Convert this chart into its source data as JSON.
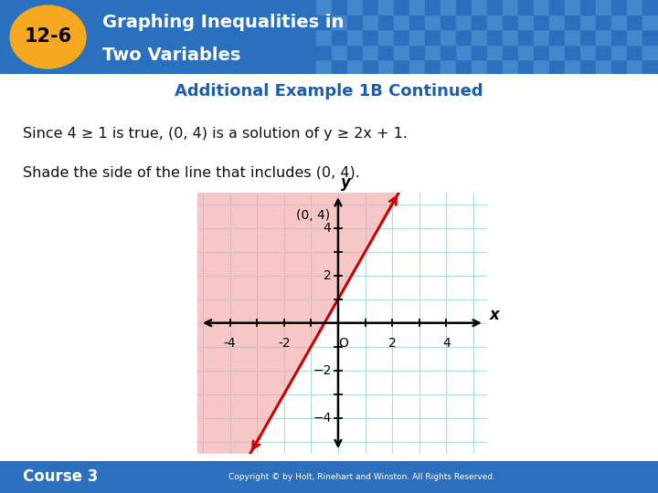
{
  "title_badge": "12-6",
  "title_text_line1": "Graphing Inequalities in",
  "title_text_line2": "Two Variables",
  "subtitle": "Additional Example 1B Continued",
  "body_text_line1": "Since 4 ≥ 1 is true, (0, 4) is a solution of y ≥ 2x + 1.",
  "body_text_line2": "Shade the side of the line that includes (0, 4).",
  "point_label": "(0, 4)",
  "point_x": 0,
  "point_y": 4,
  "slope": 2,
  "intercept": 1,
  "xlim": [
    -5.2,
    5.5
  ],
  "ylim": [
    -5.5,
    5.5
  ],
  "xticks": [
    -4,
    -2,
    2,
    4
  ],
  "yticks": [
    -4,
    -2,
    2,
    4
  ],
  "header_bg_left": "#2B6FBF",
  "header_bg_right": "#3A7FCC",
  "badge_color": "#F5A820",
  "subtitle_color": "#1A5DAD",
  "body_text_color": "#111111",
  "line_color": "#CC0000",
  "shade_color": "#F4AAAA",
  "shade_alpha": 0.65,
  "grid_color": "#ADD8E6",
  "footer_bg": "#2B6FBF",
  "footer_text": "Course 3",
  "copyright_text": "Copyright © by Holt, Rinehart and Winston. All Rights Reserved.",
  "background_color": "#FFFFFF",
  "checker_color1": "#4488CC",
  "checker_color2": "#2B6FBF"
}
